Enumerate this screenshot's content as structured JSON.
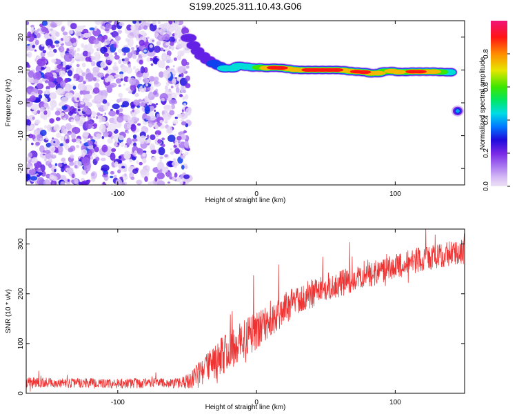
{
  "figure_title": "S199.2025.311.10.43.G06",
  "chart_data": [
    {
      "type": "heatmap",
      "xlabel": "Height of straight line (km)",
      "ylabel": "Frequency (Hz)",
      "xlim": [
        -166,
        150
      ],
      "ylim": [
        -25,
        25
      ],
      "xticks": [
        -100,
        0,
        100
      ],
      "yticks": [
        -20,
        -10,
        0,
        10,
        20
      ],
      "colorbar": {
        "label": "Normalized spectral amplitude",
        "range": [
          0,
          1
        ],
        "ticks": [
          0.0,
          0.2,
          0.4,
          0.6,
          0.8
        ],
        "tick_labels": [
          "0.0",
          "0.2",
          "0.4",
          "0.6",
          "0.8"
        ]
      },
      "noise_region": {
        "x_from": -166,
        "x_to": -52
      },
      "ridge": [
        {
          "x": -51,
          "y": 21,
          "amp": 0.3
        },
        {
          "x": -47,
          "y": 18.5,
          "amp": 0.3
        },
        {
          "x": -44,
          "y": 16.5,
          "amp": 0.25
        },
        {
          "x": -41,
          "y": 15,
          "amp": 0.3
        },
        {
          "x": -37,
          "y": 13.5,
          "amp": 0.25
        },
        {
          "x": -33,
          "y": 12.5,
          "amp": 0.35
        },
        {
          "x": -29,
          "y": 11.5,
          "amp": 0.4
        },
        {
          "x": -25,
          "y": 11,
          "amp": 0.5
        },
        {
          "x": -20,
          "y": 10,
          "amp": 0.45
        },
        {
          "x": -15,
          "y": 11,
          "amp": 0.5
        },
        {
          "x": -10,
          "y": 11.5,
          "amp": 0.55
        },
        {
          "x": -5,
          "y": 10.5,
          "amp": 0.5
        },
        {
          "x": 0,
          "y": 11,
          "amp": 0.6
        },
        {
          "x": 5,
          "y": 10.5,
          "amp": 0.75
        },
        {
          "x": 10,
          "y": 10.7,
          "amp": 0.95
        },
        {
          "x": 15,
          "y": 10.7,
          "amp": 0.95
        },
        {
          "x": 20,
          "y": 10.5,
          "amp": 0.8
        },
        {
          "x": 25,
          "y": 10.2,
          "amp": 0.75
        },
        {
          "x": 30,
          "y": 10,
          "amp": 0.85
        },
        {
          "x": 35,
          "y": 10,
          "amp": 0.9
        },
        {
          "x": 40,
          "y": 10,
          "amp": 0.9
        },
        {
          "x": 45,
          "y": 10,
          "amp": 0.9
        },
        {
          "x": 50,
          "y": 10,
          "amp": 0.95
        },
        {
          "x": 55,
          "y": 10,
          "amp": 0.9
        },
        {
          "x": 60,
          "y": 10,
          "amp": 0.8
        },
        {
          "x": 65,
          "y": 9.8,
          "amp": 0.75
        },
        {
          "x": 70,
          "y": 9.5,
          "amp": 0.9
        },
        {
          "x": 75,
          "y": 9.5,
          "amp": 0.95
        },
        {
          "x": 80,
          "y": 9.2,
          "amp": 0.75
        },
        {
          "x": 85,
          "y": 8.8,
          "amp": 0.85
        },
        {
          "x": 90,
          "y": 9.3,
          "amp": 0.7
        },
        {
          "x": 95,
          "y": 9.8,
          "amp": 0.75
        },
        {
          "x": 100,
          "y": 9.5,
          "amp": 0.8
        },
        {
          "x": 105,
          "y": 9.3,
          "amp": 0.7
        },
        {
          "x": 110,
          "y": 9.5,
          "amp": 0.9
        },
        {
          "x": 115,
          "y": 9.5,
          "amp": 0.95
        },
        {
          "x": 120,
          "y": 9.5,
          "amp": 0.85
        },
        {
          "x": 125,
          "y": 9.5,
          "amp": 0.75
        },
        {
          "x": 130,
          "y": 9.5,
          "amp": 0.65
        },
        {
          "x": 135,
          "y": 9.3,
          "amp": 0.55
        },
        {
          "x": 140,
          "y": 9.3,
          "amp": 0.5
        }
      ],
      "blobs": [
        {
          "x": 145,
          "y": -2.5,
          "amp": 0.4
        }
      ]
    },
    {
      "type": "line",
      "xlabel": "Height of straight line (km)",
      "ylabel": "SNR (10 * v/v)",
      "xlim": [
        -166,
        150
      ],
      "ylim": [
        0,
        330
      ],
      "xticks": [
        -100,
        0,
        100
      ],
      "yticks": [
        0,
        100,
        200,
        300
      ],
      "line_color": "#ee3333",
      "series": [
        {
          "name": "SNR",
          "trend": [
            [
              -166,
              22
            ],
            [
              -120,
              20
            ],
            [
              -80,
              20
            ],
            [
              -55,
              20
            ],
            [
              -47,
              25
            ],
            [
              -40,
              40
            ],
            [
              -30,
              62
            ],
            [
              -20,
              85
            ],
            [
              -10,
              105
            ],
            [
              0,
              128
            ],
            [
              10,
              150
            ],
            [
              20,
              170
            ],
            [
              30,
              187
            ],
            [
              40,
              200
            ],
            [
              50,
              210
            ],
            [
              60,
              220
            ],
            [
              70,
              228
            ],
            [
              80,
              237
            ],
            [
              90,
              245
            ],
            [
              100,
              255
            ],
            [
              110,
              263
            ],
            [
              120,
              270
            ],
            [
              130,
              276
            ],
            [
              140,
              281
            ],
            [
              150,
              285
            ]
          ],
          "noise_spread": [
            [
              -166,
              20
            ],
            [
              -55,
              20
            ],
            [
              -45,
              45
            ],
            [
              -25,
              80
            ],
            [
              0,
              80
            ],
            [
              30,
              60
            ],
            [
              80,
              50
            ],
            [
              150,
              50
            ]
          ]
        }
      ]
    }
  ]
}
